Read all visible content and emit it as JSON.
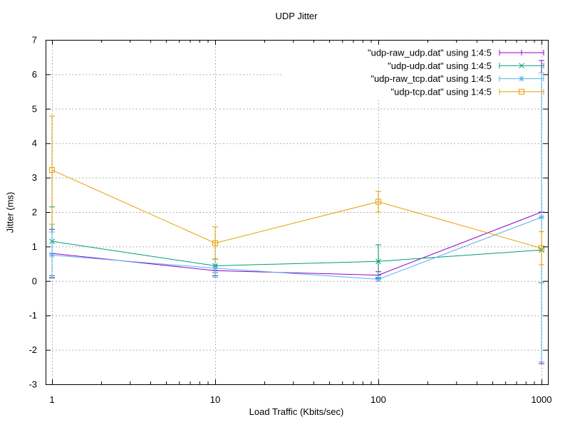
{
  "window": {
    "background": "#ffffff"
  },
  "chart_data": {
    "type": "line",
    "title": "UDP Jitter",
    "xlabel": "Load Traffic (Kbits/sec)",
    "ylabel": "Jitter (ms)",
    "x_scale": "log",
    "grid": true,
    "legend_position": "top-right-inside",
    "ylim": [
      -3,
      7
    ],
    "x_ticks": [
      1,
      10,
      100,
      1000
    ],
    "x_tick_labels": [
      "1",
      "10",
      "100",
      "1000"
    ],
    "y_ticks": [
      -3,
      -2,
      -1,
      0,
      1,
      2,
      3,
      4,
      5,
      6,
      7
    ],
    "y_tick_labels": [
      "-3",
      "-2",
      "-1",
      "0",
      "1",
      "2",
      "3",
      "4",
      "5",
      "6",
      "7"
    ],
    "x": [
      1,
      10,
      100,
      1000
    ],
    "series": [
      {
        "name": "\"udp-raw_udp.dat\" using 1:4:5",
        "color": "#9400d3",
        "marker": "plus",
        "values": [
          0.8,
          0.3,
          0.17,
          2.0
        ],
        "err": [
          0.7,
          0.15,
          0.1,
          4.4
        ]
      },
      {
        "name": "\"udp-udp.dat\" using 1:4:5",
        "color": "#009e73",
        "marker": "cross",
        "values": [
          1.15,
          0.44,
          0.57,
          0.9
        ],
        "err": [
          1.0,
          0.2,
          0.48,
          0.95
        ]
      },
      {
        "name": "\"udp-raw_tcp.dat\" using 1:4:5",
        "color": "#56b4e9",
        "marker": "star",
        "values": [
          0.75,
          0.37,
          0.05,
          1.85
        ],
        "err": [
          0.67,
          0.26,
          0.06,
          4.2
        ]
      },
      {
        "name": "\"udp-tcp.dat\" using 1:4:5",
        "color": "#e69f00",
        "marker": "square",
        "values": [
          3.22,
          1.1,
          2.3,
          0.95
        ],
        "err": [
          1.57,
          0.47,
          0.3,
          0.48
        ]
      }
    ],
    "style": {
      "grid_color": "#999999",
      "border_color": "#000000",
      "text_color": "#000000",
      "legend_background": "#ffffff"
    }
  }
}
